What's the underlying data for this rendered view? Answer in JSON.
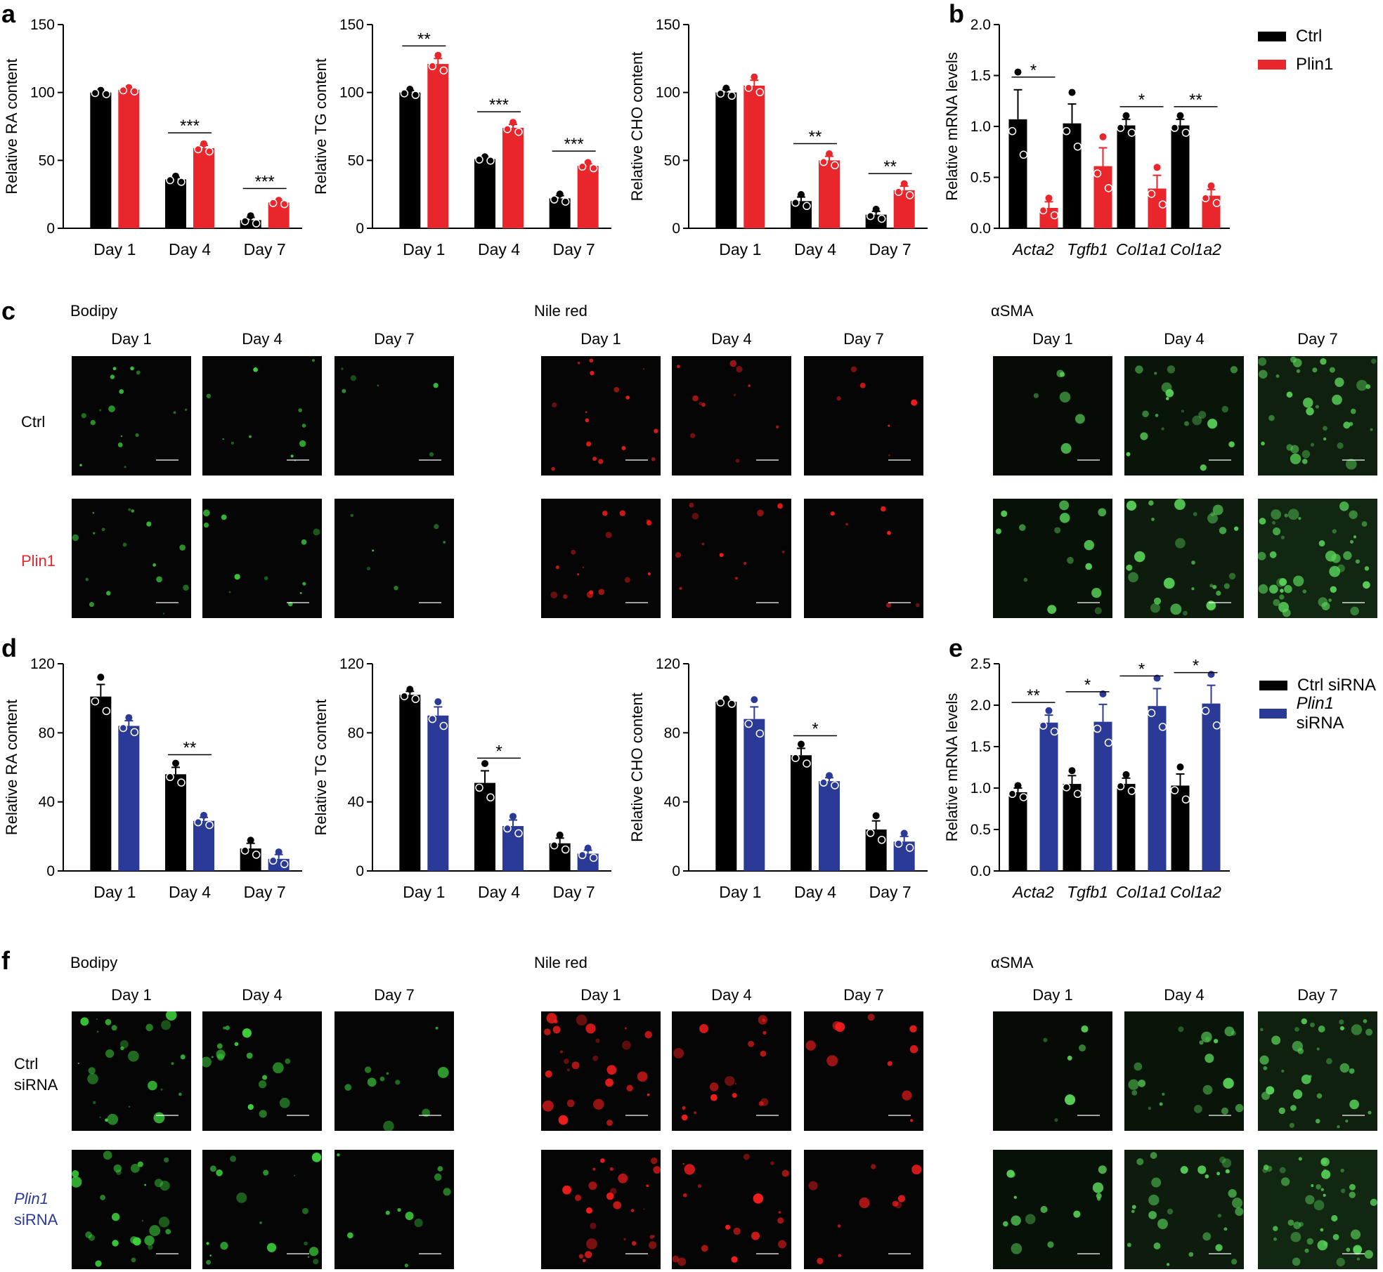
{
  "panel_labels": {
    "a": "a",
    "b": "b",
    "c": "c",
    "d": "d",
    "e": "e",
    "f": "f"
  },
  "legend_top": [
    {
      "label": "Ctrl",
      "color": "#000000"
    },
    {
      "label": "Plin1",
      "color": "#e8262b"
    }
  ],
  "legend_bottom": [
    {
      "label": "Ctrl siRNA",
      "color": "#000000"
    },
    {
      "label_italic": "Plin1",
      "label_rest": " siRNA",
      "color": "#2b3a96"
    }
  ],
  "micrographs": {
    "c": {
      "stains": [
        "Bodipy",
        "Nile red",
        "αSMA"
      ],
      "days": [
        "Day 1",
        "Day 4",
        "Day 7"
      ],
      "rows": {
        "ctrl": "Ctrl",
        "treated": "Plin1"
      }
    },
    "f": {
      "stains": [
        "Bodipy",
        "Nile red",
        "αSMA"
      ],
      "days": [
        "Day 1",
        "Day 4",
        "Day 7"
      ],
      "rows": {
        "ctrl_line1": "Ctrl",
        "ctrl_line2": "siRNA",
        "treated_italic": "Plin1",
        "treated_line2": "siRNA"
      }
    },
    "stain_colors": [
      "#3fd83f",
      "#ff1e1e",
      "#5bd85b"
    ]
  },
  "chart_data": [
    {
      "id": "a1",
      "type": "bar",
      "ylabel": "Relative RA content",
      "ylim": [
        0,
        150
      ],
      "yticks": [
        0,
        50,
        100,
        150
      ],
      "categories": [
        "Day 1",
        "Day 4",
        "Day 7"
      ],
      "series": [
        {
          "name": "Ctrl",
          "values": [
            100,
            36,
            6
          ],
          "err": [
            1,
            1.5,
            2
          ]
        },
        {
          "name": "Plin1",
          "values": [
            102,
            59,
            19
          ],
          "err": [
            1,
            2,
            1
          ]
        }
      ],
      "sig": [
        "",
        "***",
        "***"
      ]
    },
    {
      "id": "a2",
      "type": "bar",
      "ylabel": "Relative TG content",
      "ylim": [
        0,
        150
      ],
      "yticks": [
        0,
        50,
        100,
        150
      ],
      "categories": [
        "Day 1",
        "Day 4",
        "Day 7"
      ],
      "series": [
        {
          "name": "Ctrl",
          "values": [
            100,
            51,
            22
          ],
          "err": [
            1.5,
            1,
            2
          ]
        },
        {
          "name": "Plin1",
          "values": [
            121,
            74,
            46
          ],
          "err": [
            4,
            2.5,
            1.5
          ]
        }
      ],
      "sig": [
        "**",
        "***",
        "***"
      ]
    },
    {
      "id": "a3",
      "type": "bar",
      "ylabel": "Relative CHO content",
      "ylim": [
        0,
        150
      ],
      "yticks": [
        0,
        50,
        100,
        150
      ],
      "categories": [
        "Day 1",
        "Day 4",
        "Day 7"
      ],
      "series": [
        {
          "name": "Ctrl",
          "values": [
            100,
            20,
            10
          ],
          "err": [
            2,
            3,
            2.5
          ]
        },
        {
          "name": "Plin1",
          "values": [
            105,
            50,
            28
          ],
          "err": [
            4,
            3,
            3
          ]
        }
      ],
      "sig": [
        "",
        "**",
        "**"
      ]
    },
    {
      "id": "b",
      "type": "bar",
      "ylabel": "Relative mRNA levels",
      "ylim": [
        0,
        2.0
      ],
      "yticks": [
        "0.0",
        "0.5",
        "1.0",
        "1.5",
        "2.0"
      ],
      "categories": [
        "Acta2",
        "Tgfb1",
        "Col1a1",
        "Col1a2"
      ],
      "italic_categories": true,
      "series": [
        {
          "name": "Ctrl",
          "values": [
            1.07,
            1.03,
            1.01,
            1.01
          ],
          "err": [
            0.29,
            0.19,
            0.06,
            0.06
          ]
        },
        {
          "name": "Plin1",
          "values": [
            0.2,
            0.61,
            0.39,
            0.32
          ],
          "err": [
            0.06,
            0.18,
            0.13,
            0.06
          ]
        }
      ],
      "sig": [
        "*",
        "",
        "*",
        "**"
      ]
    },
    {
      "id": "d1",
      "type": "bar",
      "ylabel": "Relative RA content",
      "ylim": [
        0,
        120
      ],
      "yticks": [
        0,
        40,
        80,
        120
      ],
      "categories": [
        "Day 1",
        "Day 4",
        "Day 7"
      ],
      "series": [
        {
          "name": "Ctrl siRNA",
          "values": [
            101,
            56,
            13
          ],
          "err": [
            7,
            4,
            3
          ]
        },
        {
          "name": "Plin1 siRNA",
          "values": [
            84,
            29,
            7
          ],
          "err": [
            3,
            2,
            2.5
          ]
        }
      ],
      "sig": [
        "",
        "**",
        ""
      ]
    },
    {
      "id": "d2",
      "type": "bar",
      "ylabel": "Relative TG content",
      "ylim": [
        0,
        120
      ],
      "yticks": [
        0,
        40,
        80,
        120
      ],
      "categories": [
        "Day 1",
        "Day 4",
        "Day 7"
      ],
      "series": [
        {
          "name": "Ctrl siRNA",
          "values": [
            102,
            51,
            16
          ],
          "err": [
            2,
            7,
            3
          ]
        },
        {
          "name": "Plin1 siRNA",
          "values": [
            90,
            26,
            10
          ],
          "err": [
            5,
            3.5,
            2
          ]
        }
      ],
      "sig": [
        "",
        "*",
        ""
      ]
    },
    {
      "id": "d3",
      "type": "bar",
      "ylabel": "Relative CHO content",
      "ylim": [
        0,
        120
      ],
      "yticks": [
        0,
        40,
        80,
        120
      ],
      "categories": [
        "Day 1",
        "Day 4",
        "Day 7"
      ],
      "series": [
        {
          "name": "Ctrl siRNA",
          "values": [
            98,
            67,
            24
          ],
          "err": [
            1,
            4,
            5
          ]
        },
        {
          "name": "Plin1 siRNA",
          "values": [
            88,
            52,
            17
          ],
          "err": [
            7,
            2,
            3
          ]
        }
      ],
      "sig": [
        "",
        "*",
        ""
      ]
    },
    {
      "id": "e",
      "type": "bar",
      "ylabel": "Relative mRNA levels",
      "ylim": [
        0,
        2.5
      ],
      "yticks": [
        "0.0",
        "0.5",
        "1.0",
        "1.5",
        "2.0",
        "2.5"
      ],
      "categories": [
        "Acta2",
        "Tgfb1",
        "Col1a1",
        "Col1a2"
      ],
      "italic_categories": true,
      "series": [
        {
          "name": "Ctrl siRNA",
          "values": [
            0.95,
            1.05,
            1.05,
            1.03
          ],
          "err": [
            0.05,
            0.1,
            0.07,
            0.14
          ]
        },
        {
          "name": "Plin1 siRNA",
          "values": [
            1.79,
            1.8,
            1.99,
            2.02
          ],
          "err": [
            0.09,
            0.21,
            0.21,
            0.22
          ]
        }
      ],
      "sig": [
        "**",
        "*",
        "*",
        "*"
      ]
    }
  ]
}
